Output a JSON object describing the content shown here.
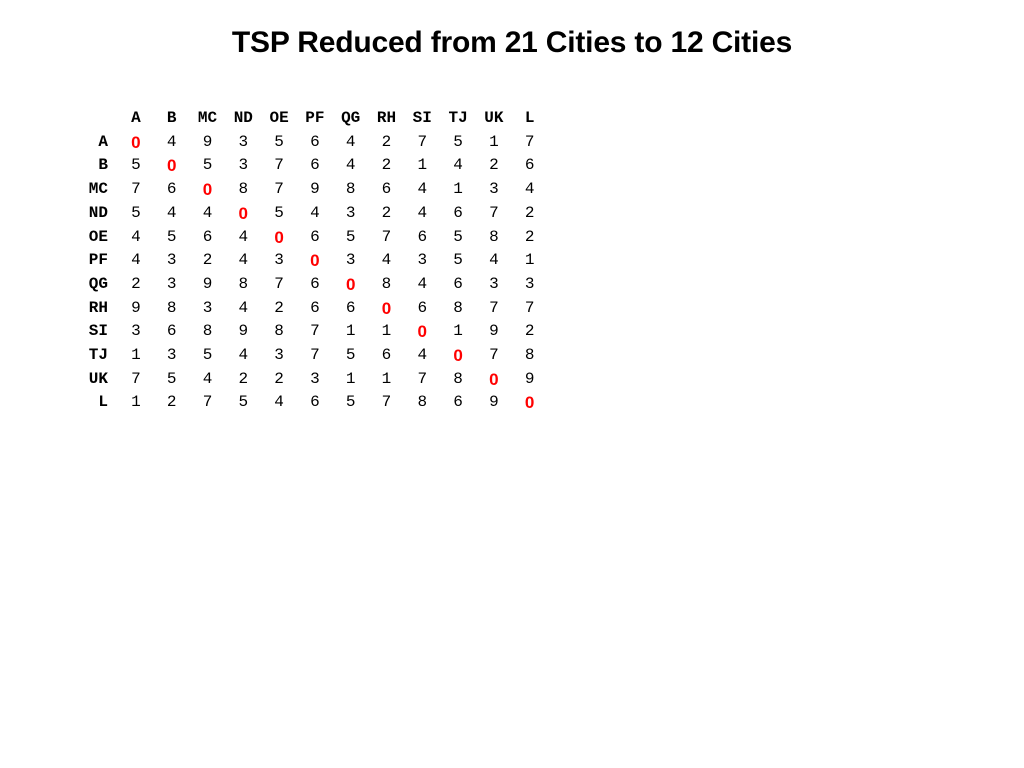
{
  "title": "TSP Reduced from 21 Cities to 12 Cities",
  "columns": [
    "A",
    "B",
    "MC",
    "ND",
    "OE",
    "PF",
    "QG",
    "RH",
    "SI",
    "TJ",
    "UK",
    "L"
  ],
  "rows": [
    {
      "label": "A",
      "values": [
        "0",
        "4",
        "9",
        "3",
        "5",
        "6",
        "4",
        "2",
        "7",
        "5",
        "1",
        "7"
      ]
    },
    {
      "label": "B",
      "values": [
        "5",
        "0",
        "5",
        "3",
        "7",
        "6",
        "4",
        "2",
        "1",
        "4",
        "2",
        "6"
      ]
    },
    {
      "label": "MC",
      "values": [
        "7",
        "6",
        "0",
        "8",
        "7",
        "9",
        "8",
        "6",
        "4",
        "1",
        "3",
        "4"
      ]
    },
    {
      "label": "ND",
      "values": [
        "5",
        "4",
        "4",
        "0",
        "5",
        "4",
        "3",
        "2",
        "4",
        "6",
        "7",
        "2"
      ]
    },
    {
      "label": "OE",
      "values": [
        "4",
        "5",
        "6",
        "4",
        "0",
        "6",
        "5",
        "7",
        "6",
        "5",
        "8",
        "2"
      ]
    },
    {
      "label": "PF",
      "values": [
        "4",
        "3",
        "2",
        "4",
        "3",
        "0",
        "3",
        "4",
        "3",
        "5",
        "4",
        "1"
      ]
    },
    {
      "label": "QG",
      "values": [
        "2",
        "3",
        "9",
        "8",
        "7",
        "6",
        "0",
        "8",
        "4",
        "6",
        "3",
        "3"
      ]
    },
    {
      "label": "RH",
      "values": [
        "9",
        "8",
        "3",
        "4",
        "2",
        "6",
        "6",
        "0",
        "6",
        "8",
        "7",
        "7"
      ]
    },
    {
      "label": "SI",
      "values": [
        "3",
        "6",
        "8",
        "9",
        "8",
        "7",
        "1",
        "1",
        "0",
        "1",
        "9",
        "2"
      ]
    },
    {
      "label": "TJ",
      "values": [
        "1",
        "3",
        "5",
        "4",
        "3",
        "7",
        "5",
        "6",
        "4",
        "0",
        "7",
        "8"
      ]
    },
    {
      "label": "UK",
      "values": [
        "7",
        "5",
        "4",
        "2",
        "2",
        "3",
        "1",
        "1",
        "7",
        "8",
        "0",
        "9"
      ]
    },
    {
      "label": "L",
      "values": [
        "1",
        "2",
        "7",
        "5",
        "4",
        "6",
        "5",
        "7",
        "8",
        "6",
        "9",
        "0"
      ]
    }
  ],
  "colors": {
    "text": "#000000",
    "diagonal": "#ff0000",
    "background": "#ffffff"
  }
}
